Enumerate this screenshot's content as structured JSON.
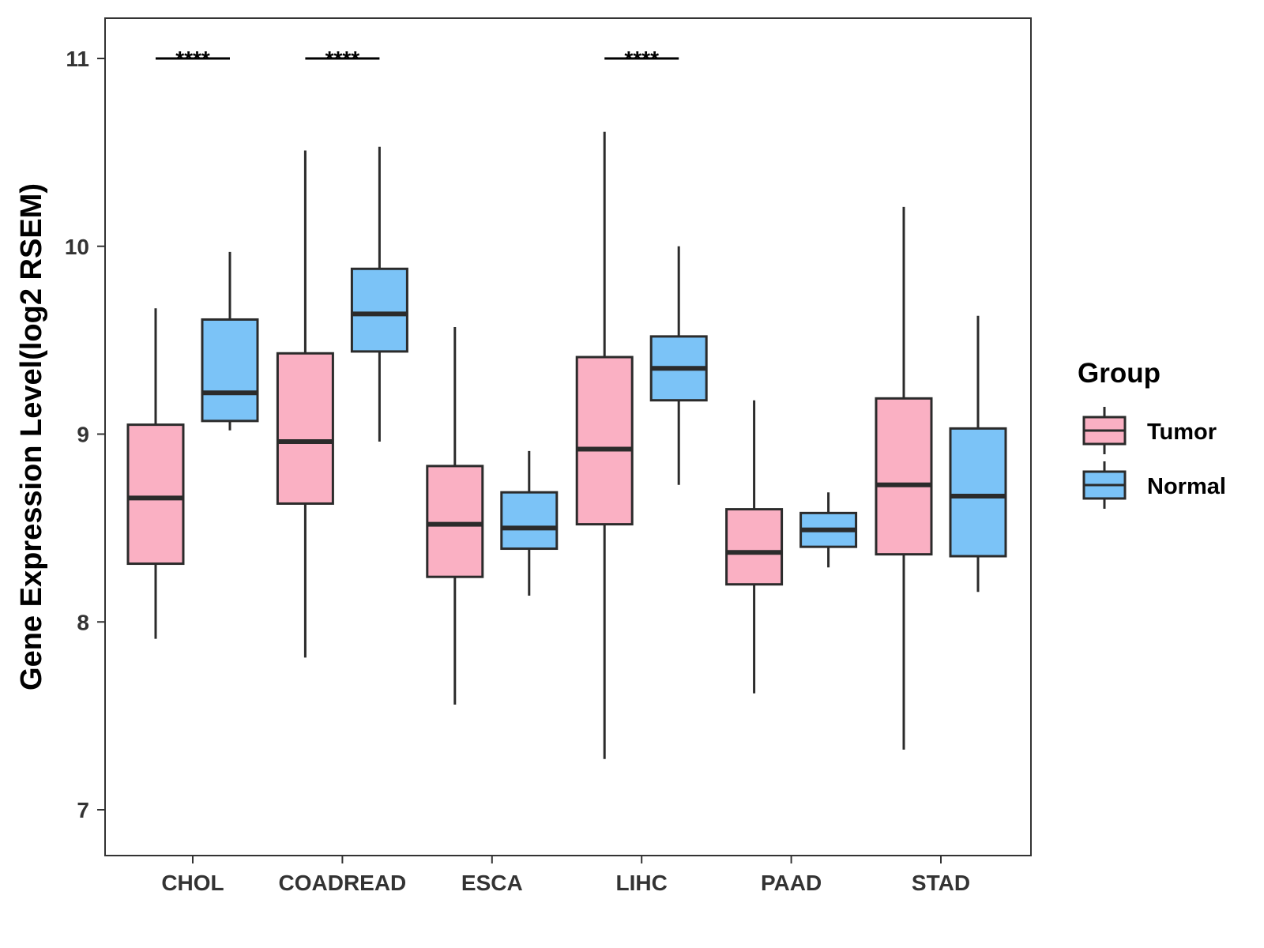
{
  "chart_data": {
    "type": "boxplot",
    "title": "",
    "xlabel": "",
    "ylabel": "Gene Expression Level(log2 RSEM)",
    "ylim": [
      6.75,
      11.2
    ],
    "yticks": [
      "7",
      "8",
      "9",
      "10",
      "11"
    ],
    "grid": false,
    "categories": [
      "CHOL",
      "COADREAD",
      "ESCA",
      "LIHC",
      "PAAD",
      "STAD"
    ],
    "legend": {
      "title": "Group",
      "position": "right",
      "entries": [
        {
          "name": "Tumor",
          "color": "#FAB0C3"
        },
        {
          "name": "Normal",
          "color": "#7BC3F7"
        }
      ]
    },
    "series": [
      {
        "name": "Tumor",
        "color": "#FAB0C3",
        "boxes": [
          {
            "category": "CHOL",
            "min": 7.91,
            "q1": 8.31,
            "median": 8.66,
            "q3": 9.05,
            "max": 9.67
          },
          {
            "category": "COADREAD",
            "min": 7.81,
            "q1": 8.63,
            "median": 8.96,
            "q3": 9.43,
            "max": 10.51
          },
          {
            "category": "ESCA",
            "min": 7.56,
            "q1": 8.24,
            "median": 8.52,
            "q3": 8.83,
            "max": 9.57
          },
          {
            "category": "LIHC",
            "min": 7.27,
            "q1": 8.52,
            "median": 8.92,
            "q3": 9.41,
            "max": 10.61
          },
          {
            "category": "PAAD",
            "min": 7.62,
            "q1": 8.2,
            "median": 8.37,
            "q3": 8.6,
            "max": 9.18
          },
          {
            "category": "STAD",
            "min": 7.32,
            "q1": 8.36,
            "median": 8.73,
            "q3": 9.19,
            "max": 10.21
          }
        ]
      },
      {
        "name": "Normal",
        "color": "#7BC3F7",
        "boxes": [
          {
            "category": "CHOL",
            "min": 9.02,
            "q1": 9.07,
            "median": 9.22,
            "q3": 9.61,
            "max": 9.97
          },
          {
            "category": "COADREAD",
            "min": 8.96,
            "q1": 9.44,
            "median": 9.64,
            "q3": 9.88,
            "max": 10.53
          },
          {
            "category": "ESCA",
            "min": 8.14,
            "q1": 8.39,
            "median": 8.5,
            "q3": 8.69,
            "max": 8.91
          },
          {
            "category": "LIHC",
            "min": 8.73,
            "q1": 9.18,
            "median": 9.35,
            "q3": 9.52,
            "max": 10.0
          },
          {
            "category": "PAAD",
            "min": 8.29,
            "q1": 8.4,
            "median": 8.49,
            "q3": 8.58,
            "max": 8.69
          },
          {
            "category": "STAD",
            "min": 8.16,
            "q1": 8.35,
            "median": 8.67,
            "q3": 9.03,
            "max": 9.63
          }
        ]
      }
    ],
    "annotations": [
      {
        "category": "CHOL",
        "text": "****",
        "y": 11.0
      },
      {
        "category": "COADREAD",
        "text": "****",
        "y": 11.0
      },
      {
        "category": "LIHC",
        "text": "****",
        "y": 11.0
      }
    ]
  }
}
